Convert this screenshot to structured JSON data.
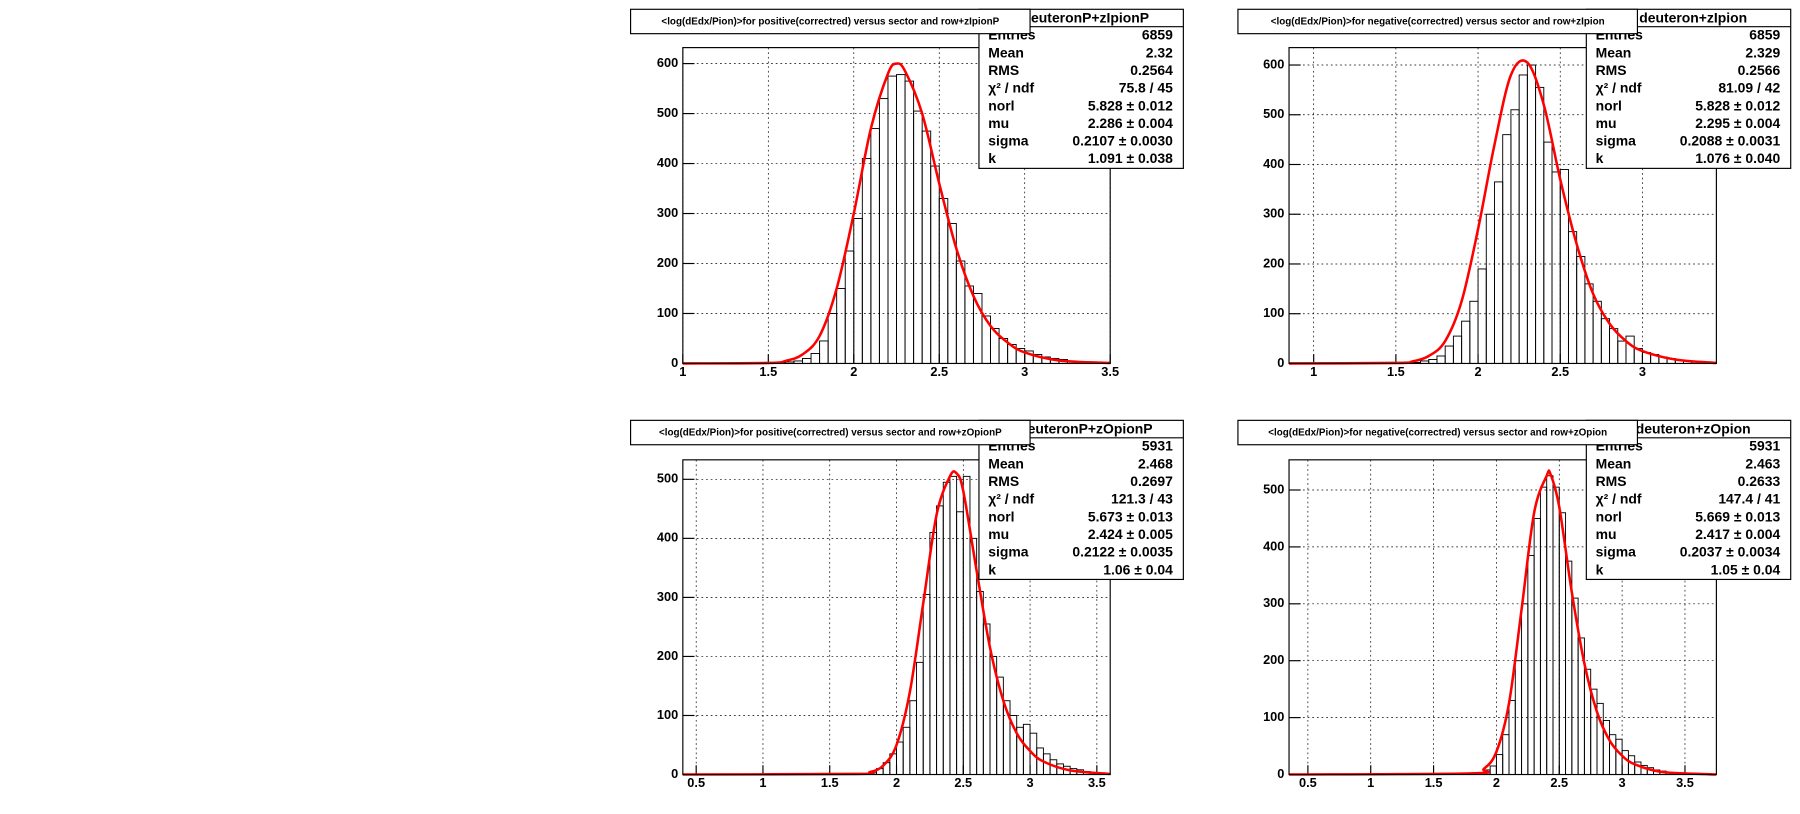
{
  "chart_data": [
    {
      "type": "histogram",
      "title": "<log(dEdx/Pion)>for positive(correctred) versus sector and row+zIpionP",
      "stats": {
        "name": "deuteronP+zIpionP",
        "rows": [
          [
            "Entries",
            "6859"
          ],
          [
            "Mean",
            "2.32"
          ],
          [
            "RMS",
            "0.2564"
          ],
          [
            "χ² / ndf",
            "75.8 / 45"
          ],
          [
            "norl",
            "5.828 ± 0.012"
          ],
          [
            "mu",
            "2.286 ± 0.004"
          ],
          [
            "sigma",
            "0.2107 ± 0.0030"
          ],
          [
            "k",
            "1.091 ± 0.038"
          ]
        ]
      },
      "bins": [
        1,
        1.05,
        1.1,
        1.15,
        1.2,
        1.25,
        1.3,
        1.35,
        1.4,
        1.45,
        1.5,
        1.55,
        1.6,
        1.65,
        1.7,
        1.75,
        1.8,
        1.85,
        1.9,
        1.95,
        2,
        2.05,
        2.1,
        2.15,
        2.2,
        2.25,
        2.3,
        2.35,
        2.4,
        2.45,
        2.5,
        2.55,
        2.6,
        2.65,
        2.7,
        2.75,
        2.8,
        2.85,
        2.9,
        2.95,
        3,
        3.05,
        3.1,
        3.15,
        3.2,
        3.25,
        3.3,
        3.35,
        3.4,
        3.45,
        3.5
      ],
      "counts": [
        0,
        0,
        0,
        0,
        0,
        0,
        0,
        0,
        0,
        0,
        0,
        1,
        3,
        5,
        10,
        20,
        45,
        100,
        150,
        225,
        290,
        410,
        470,
        530,
        575,
        578,
        565,
        505,
        465,
        395,
        330,
        280,
        205,
        155,
        140,
        95,
        70,
        50,
        38,
        30,
        25,
        18,
        13,
        10,
        8,
        5,
        4,
        3,
        2,
        1
      ],
      "fit": {
        "x": [
          1,
          1.5,
          1.6,
          1.7,
          1.8,
          1.9,
          2,
          2.1,
          2.2,
          2.25,
          2.3,
          2.4,
          2.5,
          2.6,
          2.7,
          2.8,
          2.9,
          3,
          3.2,
          3.5
        ],
        "y": [
          0,
          1,
          5,
          18,
          55,
          150,
          300,
          470,
          580,
          600,
          585,
          500,
          360,
          230,
          135,
          75,
          42,
          22,
          6,
          1
        ]
      },
      "xlim": [
        1,
        3.5
      ],
      "ylim": [
        0,
        632
      ],
      "xticks": [
        1,
        1.5,
        2,
        2.5,
        3,
        3.5
      ],
      "yticks": [
        0,
        100,
        200,
        300,
        400,
        500,
        600
      ],
      "grid": true,
      "color": "#000000",
      "fit_color": "#ff0000"
    },
    {
      "type": "histogram",
      "title": "<log(dEdx/Pion)>for negative(correctred) versus sector and row+zIpion",
      "stats": {
        "name": "deuteron+zIpion",
        "rows": [
          [
            "Entries",
            "6859"
          ],
          [
            "Mean",
            "2.329"
          ],
          [
            "RMS",
            "0.2566"
          ],
          [
            "χ² / ndf",
            "81.09 / 42"
          ],
          [
            "norl",
            "5.828 ± 0.012"
          ],
          [
            "mu",
            "2.295 ± 0.004"
          ],
          [
            "sigma",
            "0.2088 ± 0.0031"
          ],
          [
            "k",
            "1.076 ± 0.040"
          ]
        ]
      },
      "bins": [
        0.85,
        0.9,
        0.95,
        1,
        1.05,
        1.1,
        1.15,
        1.2,
        1.25,
        1.3,
        1.35,
        1.4,
        1.45,
        1.5,
        1.55,
        1.6,
        1.65,
        1.7,
        1.75,
        1.8,
        1.85,
        1.9,
        1.95,
        2,
        2.05,
        2.1,
        2.15,
        2.2,
        2.25,
        2.3,
        2.35,
        2.4,
        2.45,
        2.5,
        2.55,
        2.6,
        2.65,
        2.7,
        2.75,
        2.8,
        2.85,
        2.9,
        2.95,
        3,
        3.05,
        3.1,
        3.15,
        3.2,
        3.25,
        3.3,
        3.35,
        3.4,
        3.45
      ],
      "counts": [
        0,
        0,
        0,
        0,
        0,
        0,
        0,
        0,
        0,
        0,
        0,
        0,
        0,
        0,
        1,
        2,
        5,
        8,
        15,
        35,
        55,
        85,
        125,
        190,
        300,
        365,
        460,
        510,
        580,
        600,
        555,
        445,
        385,
        390,
        265,
        215,
        160,
        125,
        90,
        70,
        45,
        55,
        30,
        22,
        18,
        13,
        10,
        7,
        5,
        4,
        3,
        1
      ],
      "fit": {
        "x": [
          0.85,
          1.5,
          1.6,
          1.7,
          1.8,
          1.9,
          2,
          2.1,
          2.2,
          2.3,
          2.4,
          2.5,
          2.6,
          2.7,
          2.8,
          2.9,
          3,
          3.2,
          3.45
        ],
        "y": [
          0,
          1,
          4,
          15,
          45,
          125,
          270,
          440,
          580,
          605,
          520,
          370,
          240,
          140,
          80,
          45,
          25,
          8,
          1
        ]
      },
      "xlim": [
        0.85,
        3.45
      ],
      "ylim": [
        0,
        635
      ],
      "xticks": [
        1,
        1.5,
        2,
        2.5,
        3
      ],
      "yticks": [
        0,
        100,
        200,
        300,
        400,
        500,
        600
      ],
      "grid": true,
      "color": "#000000",
      "fit_color": "#ff0000"
    },
    {
      "type": "histogram",
      "title": "<log(dEdx/Pion)>for positive(correctred) versus sector and row+zOpionP",
      "stats": {
        "name": "deuteronP+zOpionP",
        "rows": [
          [
            "Entries",
            "5931"
          ],
          [
            "Mean",
            "2.468"
          ],
          [
            "RMS",
            "0.2697"
          ],
          [
            "χ² / ndf",
            "121.3 / 43"
          ],
          [
            "norl",
            "5.673 ± 0.013"
          ],
          [
            "mu",
            "2.424 ± 0.005"
          ],
          [
            "sigma",
            "0.2122 ± 0.0035"
          ],
          [
            "k",
            "1.06 ± 0.04"
          ]
        ]
      },
      "bins": [
        0.4,
        0.45,
        0.5,
        0.55,
        0.6,
        0.65,
        0.7,
        0.75,
        0.8,
        0.85,
        0.9,
        0.95,
        1,
        1.05,
        1.1,
        1.15,
        1.2,
        1.25,
        1.3,
        1.35,
        1.4,
        1.45,
        1.5,
        1.55,
        1.6,
        1.65,
        1.7,
        1.75,
        1.8,
        1.85,
        1.9,
        1.95,
        2,
        2.05,
        2.1,
        2.15,
        2.2,
        2.25,
        2.3,
        2.35,
        2.4,
        2.45,
        2.5,
        2.55,
        2.6,
        2.65,
        2.7,
        2.75,
        2.8,
        2.85,
        2.9,
        2.95,
        3,
        3.05,
        3.1,
        3.15,
        3.2,
        3.25,
        3.3,
        3.35,
        3.4,
        3.45,
        3.5,
        3.55,
        3.6
      ],
      "counts": [
        0,
        0,
        0,
        0,
        0,
        0,
        0,
        0,
        0,
        0,
        0,
        0,
        0,
        0,
        0,
        0,
        0,
        0,
        0,
        0,
        0,
        0,
        0,
        0,
        0,
        0,
        0,
        0,
        3,
        10,
        20,
        35,
        55,
        80,
        125,
        190,
        305,
        410,
        455,
        495,
        505,
        445,
        505,
        400,
        310,
        255,
        200,
        165,
        125,
        100,
        80,
        85,
        70,
        45,
        35,
        25,
        18,
        14,
        10,
        8,
        5,
        3,
        2,
        1
      ],
      "fit": {
        "x": [
          0.4,
          1.7,
          1.8,
          1.9,
          2,
          2.1,
          2.2,
          2.3,
          2.4,
          2.45,
          2.5,
          2.6,
          2.7,
          2.8,
          2.9,
          3,
          3.1,
          3.3,
          3.6
        ],
        "y": [
          0,
          1,
          4,
          15,
          50,
          140,
          290,
          440,
          505,
          510,
          480,
          345,
          215,
          125,
          70,
          40,
          22,
          7,
          1
        ]
      },
      "xlim": [
        0.4,
        3.6
      ],
      "ylim": [
        0,
        533
      ],
      "xticks": [
        0.5,
        1,
        1.5,
        2,
        2.5,
        3,
        3.5
      ],
      "yticks": [
        0,
        100,
        200,
        300,
        400,
        500
      ],
      "grid": true,
      "color": "#000000",
      "fit_color": "#ff0000"
    },
    {
      "type": "histogram",
      "title": "<log(dEdx/Pion)>for negative(correctred) versus sector and row+zOpion",
      "stats": {
        "name": "deuteron+zOpion",
        "rows": [
          [
            "Entries",
            "5931"
          ],
          [
            "Mean",
            "2.463"
          ],
          [
            "RMS",
            "0.2633"
          ],
          [
            "χ² / ndf",
            "147.4 / 41"
          ],
          [
            "norl",
            "5.669 ± 0.013"
          ],
          [
            "mu",
            "2.417 ± 0.004"
          ],
          [
            "sigma",
            "0.2037 ± 0.0034"
          ],
          [
            "k",
            "1.05 ± 0.04"
          ]
        ]
      },
      "bins": [
        0.35,
        0.4,
        0.45,
        0.5,
        0.55,
        0.6,
        0.65,
        0.7,
        0.75,
        0.8,
        0.85,
        0.9,
        0.95,
        1,
        1.05,
        1.1,
        1.15,
        1.2,
        1.25,
        1.3,
        1.35,
        1.4,
        1.45,
        1.5,
        1.55,
        1.6,
        1.65,
        1.7,
        1.75,
        1.8,
        1.85,
        1.9,
        1.95,
        2,
        2.05,
        2.1,
        2.15,
        2.2,
        2.25,
        2.3,
        2.35,
        2.4,
        2.45,
        2.5,
        2.55,
        2.6,
        2.65,
        2.7,
        2.75,
        2.8,
        2.85,
        2.9,
        2.95,
        3,
        3.05,
        3.1,
        3.15,
        3.2,
        3.25,
        3.3,
        3.35,
        3.4,
        3.45,
        3.5,
        3.55,
        3.6,
        3.65,
        3.7,
        3.75
      ],
      "counts": [
        0,
        0,
        0,
        0,
        0,
        0,
        0,
        0,
        0,
        0,
        0,
        0,
        0,
        0,
        0,
        0,
        0,
        0,
        0,
        0,
        0,
        0,
        0,
        0,
        0,
        0,
        0,
        0,
        0,
        0,
        3,
        8,
        15,
        35,
        70,
        130,
        200,
        300,
        385,
        450,
        505,
        525,
        505,
        460,
        375,
        310,
        240,
        185,
        150,
        125,
        95,
        70,
        62,
        42,
        33,
        22,
        16,
        12,
        8,
        6,
        4,
        3,
        2,
        1,
        1,
        0,
        0,
        0
      ],
      "fit": {
        "x": [
          0.35,
          1.8,
          1.9,
          2,
          2.1,
          2.2,
          2.3,
          2.4,
          2.43,
          2.5,
          2.6,
          2.7,
          2.8,
          2.9,
          3,
          3.1,
          3.3,
          3.5,
          3.75
        ],
        "y": [
          0,
          2,
          10,
          40,
          125,
          290,
          460,
          525,
          528,
          470,
          320,
          195,
          110,
          60,
          33,
          18,
          5,
          2,
          0
        ]
      },
      "xlim": [
        0.35,
        3.75
      ],
      "ylim": [
        0,
        553
      ],
      "xticks": [
        0.5,
        1,
        1.5,
        2,
        2.5,
        3,
        3.5
      ],
      "yticks": [
        0,
        100,
        200,
        300,
        400,
        500
      ],
      "grid": true,
      "color": "#000000",
      "fit_color": "#ff0000"
    }
  ]
}
